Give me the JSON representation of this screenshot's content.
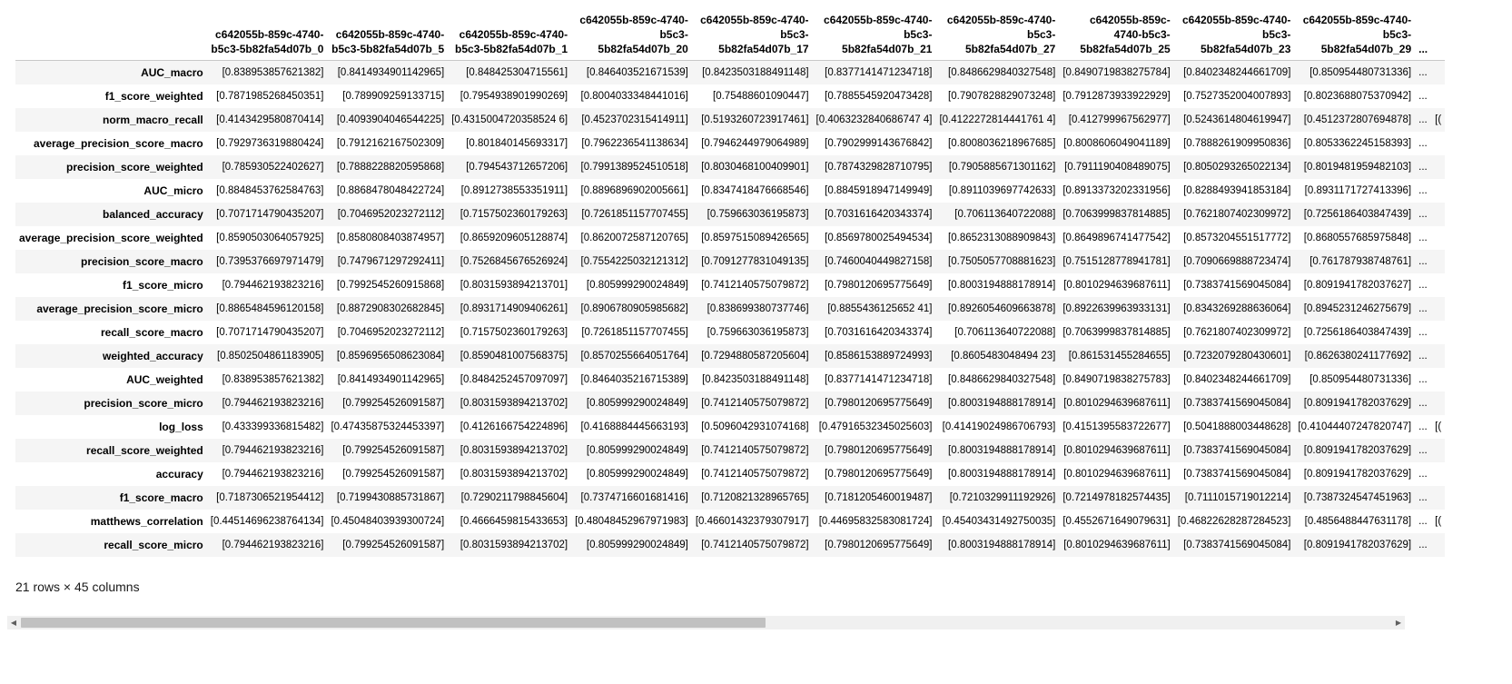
{
  "table": {
    "columns": [
      "c642055b-859c-4740-b5c3-5b82fa54d07b_0",
      "c642055b-859c-4740-b5c3-5b82fa54d07b_5",
      "c642055b-859c-4740-b5c3-5b82fa54d07b_1",
      "c642055b-859c-4740-b5c3-5b82fa54d07b_20",
      "c642055b-859c-4740-b5c3-5b82fa54d07b_17",
      "c642055b-859c-4740-b5c3-5b82fa54d07b_21",
      "c642055b-859c-4740-b5c3-5b82fa54d07b_27",
      "c642055b-859c-4740-b5c3-5b82fa54d07b_25",
      "c642055b-859c-4740-b5c3-5b82fa54d07b_23",
      "c642055b-859c-4740-b5c3-5b82fa54d07b_29"
    ],
    "ellipsis": "...",
    "rows": [
      {
        "label": "AUC_macro",
        "values": [
          "[0.838953857621382]",
          "[0.8414934901142965]",
          "[0.848425304715561]",
          "[0.846403521671539]",
          "[0.8423503188491148]",
          "[0.8377141471234718]",
          "[0.8486629840327548]",
          "[0.8490719838275784]",
          "[0.8402348244661709]",
          "[0.850954480731336]"
        ],
        "tail": ""
      },
      {
        "label": "f1_score_weighted",
        "values": [
          "[0.7871985268450351]",
          "[0.789909259133715]",
          "[0.7954938901990269]",
          "[0.8004033348441016]",
          "[0.75488601090447]",
          "[0.7885545920473428]",
          "[0.7907828829073248]",
          "[0.7912873933922929]",
          "[0.7527352004007893]",
          "[0.8023688075370942]"
        ],
        "tail": ""
      },
      {
        "label": "norm_macro_recall",
        "values": [
          "[0.4143429580870414]",
          "[0.4093904046544225]",
          "[0.4315004720358524 6]",
          "[0.4523702315414911]",
          "[0.5193260723917461]",
          "[0.4063232840686747 4]",
          "[0.4122272814441761 4]",
          "[0.412799967562977]",
          "[0.5243614804619947]",
          "[0.4512372807694878]"
        ],
        "tail": "[("
      },
      {
        "label": "average_precision_score_macro",
        "values": [
          "[0.7929736319880424]",
          "[0.7912162167502309]",
          "[0.801840145693317]",
          "[0.7962236541138634]",
          "[0.7946244979064989]",
          "[0.7902999143676842]",
          "[0.8008036218967685]",
          "[0.8008606049041189]",
          "[0.7888261909950836]",
          "[0.8053362245158393]"
        ],
        "tail": ""
      },
      {
        "label": "precision_score_weighted",
        "values": [
          "[0.785930522402627]",
          "[0.7888228820595868]",
          "[0.794543712657206]",
          "[0.7991389524510518]",
          "[0.8030468100409901]",
          "[0.7874329828710795]",
          "[0.7905885671301162]",
          "[0.7911190408489075]",
          "[0.8050293265022134]",
          "[0.8019481959482103]"
        ],
        "tail": ""
      },
      {
        "label": "AUC_micro",
        "values": [
          "[0.8848453762584763]",
          "[0.8868478048422724]",
          "[0.8912738553351911]",
          "[0.8896896902005661]",
          "[0.8347418476668546]",
          "[0.8845918947149949]",
          "[0.8911039697742633]",
          "[0.8913373202331956]",
          "[0.8288493941853184]",
          "[0.8931171727413396]"
        ],
        "tail": ""
      },
      {
        "label": "balanced_accuracy",
        "values": [
          "[0.7071714790435207]",
          "[0.7046952023272112]",
          "[0.7157502360179263]",
          "[0.7261851157707455]",
          "[0.759663036195873]",
          "[0.7031616420343374]",
          "[0.706113640722088]",
          "[0.7063999837814885]",
          "[0.7621807402309972]",
          "[0.7256186403847439]"
        ],
        "tail": ""
      },
      {
        "label": "average_precision_score_weighted",
        "values": [
          "[0.8590503064057925]",
          "[0.8580808403874957]",
          "[0.8659209605128874]",
          "[0.8620072587120765]",
          "[0.8597515089426565]",
          "[0.8569780025494534]",
          "[0.8652313088909843]",
          "[0.8649896741477542]",
          "[0.8573204551517772]",
          "[0.8680557685975848]"
        ],
        "tail": ""
      },
      {
        "label": "precision_score_macro",
        "values": [
          "[0.7395376697971479]",
          "[0.7479671297292411]",
          "[0.7526845676526924]",
          "[0.7554225032121312]",
          "[0.7091277831049135]",
          "[0.7460040449827158]",
          "[0.7505057708881623]",
          "[0.7515128778941781]",
          "[0.7090669888723474]",
          "[0.761787938748761]"
        ],
        "tail": ""
      },
      {
        "label": "f1_score_micro",
        "values": [
          "[0.794462193823216]",
          "[0.7992545260915868]",
          "[0.8031593894213701]",
          "[0.805999290024849]",
          "[0.7412140575079872]",
          "[0.7980120695775649]",
          "[0.8003194888178914]",
          "[0.8010294639687611]",
          "[0.7383741569045084]",
          "[0.8091941782037627]"
        ],
        "tail": ""
      },
      {
        "label": "average_precision_score_micro",
        "values": [
          "[0.8865484596120158]",
          "[0.8872908302682845]",
          "[0.8931714909406261]",
          "[0.8906780905985682]",
          "[0.838699380737746]",
          "[0.8855436125652 41]",
          "[0.8926054609663878]",
          "[0.8922639963933131]",
          "[0.8343269288636064]",
          "[0.8945231246275679]"
        ],
        "tail": ""
      },
      {
        "label": "recall_score_macro",
        "values": [
          "[0.7071714790435207]",
          "[0.7046952023272112]",
          "[0.7157502360179263]",
          "[0.7261851157707455]",
          "[0.759663036195873]",
          "[0.7031616420343374]",
          "[0.706113640722088]",
          "[0.7063999837814885]",
          "[0.7621807402309972]",
          "[0.7256186403847439]"
        ],
        "tail": ""
      },
      {
        "label": "weighted_accuracy",
        "values": [
          "[0.8502504861183905]",
          "[0.8596956508623084]",
          "[0.8590481007568375]",
          "[0.8570255664051764]",
          "[0.7294880587205604]",
          "[0.8586153889724993]",
          "[0.8605483048494 23]",
          "[0.861531455284655]",
          "[0.7232079280430601]",
          "[0.8626380241177692]"
        ],
        "tail": ""
      },
      {
        "label": "AUC_weighted",
        "values": [
          "[0.838953857621382]",
          "[0.8414934901142965]",
          "[0.8484252457097097]",
          "[0.8464035216715389]",
          "[0.8423503188491148]",
          "[0.8377141471234718]",
          "[0.8486629840327548]",
          "[0.8490719838275783]",
          "[0.8402348244661709]",
          "[0.850954480731336]"
        ],
        "tail": ""
      },
      {
        "label": "precision_score_micro",
        "values": [
          "[0.794462193823216]",
          "[0.799254526091587]",
          "[0.8031593894213702]",
          "[0.805999290024849]",
          "[0.7412140575079872]",
          "[0.7980120695775649]",
          "[0.8003194888178914]",
          "[0.8010294639687611]",
          "[0.7383741569045084]",
          "[0.8091941782037629]"
        ],
        "tail": ""
      },
      {
        "label": "log_loss",
        "values": [
          "[0.433399336815482]",
          "[0.47435875324453397]",
          "[0.4126166754224896]",
          "[0.4168884445663193]",
          "[0.5096042931074168]",
          "[0.47916532345025603]",
          "[0.41419024986706793]",
          "[0.4151395583722677]",
          "[0.5041888003448628]",
          "[0.41044407247820747]"
        ],
        "tail": "[("
      },
      {
        "label": "recall_score_weighted",
        "values": [
          "[0.794462193823216]",
          "[0.799254526091587]",
          "[0.8031593894213702]",
          "[0.805999290024849]",
          "[0.7412140575079872]",
          "[0.7980120695775649]",
          "[0.8003194888178914]",
          "[0.8010294639687611]",
          "[0.7383741569045084]",
          "[0.8091941782037629]"
        ],
        "tail": ""
      },
      {
        "label": "accuracy",
        "values": [
          "[0.794462193823216]",
          "[0.799254526091587]",
          "[0.8031593894213702]",
          "[0.805999290024849]",
          "[0.7412140575079872]",
          "[0.7980120695775649]",
          "[0.8003194888178914]",
          "[0.8010294639687611]",
          "[0.7383741569045084]",
          "[0.8091941782037629]"
        ],
        "tail": ""
      },
      {
        "label": "f1_score_macro",
        "values": [
          "[0.7187306521954412]",
          "[0.7199430885731867]",
          "[0.7290211798845604]",
          "[0.7374716601681416]",
          "[0.7120821328965765]",
          "[0.7181205460019487]",
          "[0.7210329911192926]",
          "[0.7214978182574435]",
          "[0.7111015719012214]",
          "[0.7387324547451963]"
        ],
        "tail": ""
      },
      {
        "label": "matthews_correlation",
        "values": [
          "[0.44514696238764134]",
          "[0.45048403939300724]",
          "[0.4666459815433653]",
          "[0.48048452967971983]",
          "[0.46601432379307917]",
          "[0.44695832583081724]",
          "[0.45403431492750035]",
          "[0.4552671649079631]",
          "[0.46822628287284523]",
          "[0.4856488447631178]"
        ],
        "tail": "[("
      },
      {
        "label": "recall_score_micro",
        "values": [
          "[0.794462193823216]",
          "[0.799254526091587]",
          "[0.8031593894213702]",
          "[0.805999290024849]",
          "[0.7412140575079872]",
          "[0.7980120695775649]",
          "[0.8003194888178914]",
          "[0.8010294639687611]",
          "[0.7383741569045084]",
          "[0.8091941782037629]"
        ],
        "tail": ""
      }
    ]
  },
  "shape_text": "21 rows × 45 columns",
  "scrollbar": {
    "left_arrow": "◀",
    "right_arrow": "▶"
  }
}
